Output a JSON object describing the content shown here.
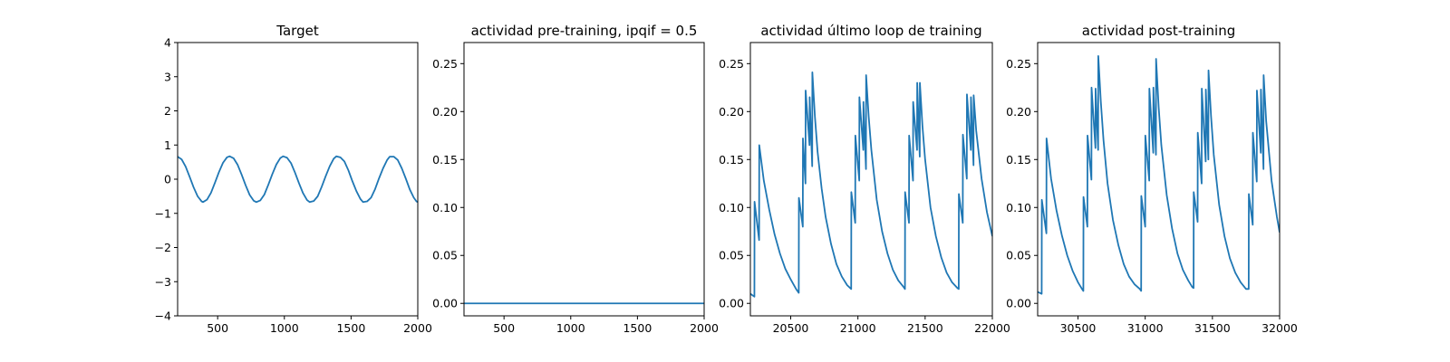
{
  "chart_data": [
    {
      "type": "line",
      "title": "Target",
      "xlim": [
        200,
        2000
      ],
      "ylim": [
        -4,
        4
      ],
      "xticks": [
        500,
        1000,
        1500,
        2000
      ],
      "xtick_labels": [
        "500",
        "1000",
        "1500",
        "2000"
      ],
      "yticks": [
        -4,
        -3,
        -2,
        -1,
        0,
        1,
        2,
        3,
        4
      ],
      "ytick_labels": [
        "−4",
        "−3",
        "−2",
        "−1",
        "0",
        "1",
        "2",
        "3",
        "4"
      ],
      "series": [
        {
          "color": "#1f77b4",
          "x": [
            200,
            230,
            260,
            290,
            320,
            350,
            380,
            390,
            420,
            450,
            480,
            510,
            540,
            570,
            590,
            620,
            650,
            680,
            710,
            740,
            770,
            790,
            820,
            850,
            880,
            910,
            940,
            970,
            990,
            1020,
            1050,
            1080,
            1110,
            1140,
            1170,
            1190,
            1220,
            1250,
            1280,
            1310,
            1340,
            1370,
            1390,
            1420,
            1450,
            1480,
            1510,
            1540,
            1570,
            1590,
            1620,
            1650,
            1680,
            1710,
            1740,
            1770,
            1790,
            1820,
            1850,
            1880,
            1910,
            1940,
            1970,
            1990,
            2000
          ],
          "y": [
            0.66,
            0.58,
            0.37,
            0.07,
            -0.24,
            -0.5,
            -0.65,
            -0.67,
            -0.6,
            -0.4,
            -0.1,
            0.21,
            0.48,
            0.64,
            0.67,
            0.61,
            0.42,
            0.13,
            -0.18,
            -0.46,
            -0.63,
            -0.67,
            -0.62,
            -0.45,
            -0.16,
            0.15,
            0.43,
            0.62,
            0.67,
            0.63,
            0.47,
            0.19,
            -0.12,
            -0.41,
            -0.61,
            -0.67,
            -0.64,
            -0.5,
            -0.22,
            0.09,
            0.38,
            0.6,
            0.67,
            0.64,
            0.52,
            0.26,
            -0.06,
            -0.35,
            -0.58,
            -0.67,
            -0.65,
            -0.54,
            -0.29,
            0.03,
            0.32,
            0.56,
            0.66,
            0.66,
            0.56,
            0.32,
            0.02,
            -0.3,
            -0.54,
            -0.65,
            -0.67
          ]
        }
      ]
    },
    {
      "type": "line",
      "title": "actividad pre-training, ipqif = 0.5",
      "xlim": [
        200,
        2000
      ],
      "ylim": [
        -0.013,
        0.272
      ],
      "xticks": [
        500,
        1000,
        1500,
        2000
      ],
      "xtick_labels": [
        "500",
        "1000",
        "1500",
        "2000"
      ],
      "yticks": [
        0,
        0.05,
        0.1,
        0.15,
        0.2,
        0.25
      ],
      "ytick_labels": [
        "0.00",
        "0.05",
        "0.10",
        "0.15",
        "0.20",
        "0.25"
      ],
      "series": [
        {
          "color": "#1f77b4",
          "x": [
            200,
            2000
          ],
          "y": [
            0,
            0
          ]
        }
      ]
    },
    {
      "type": "line",
      "title": "actividad último loop de training",
      "xlim": [
        20200,
        22000
      ],
      "ylim": [
        -0.013,
        0.272
      ],
      "xticks": [
        20500,
        21000,
        21500,
        22000
      ],
      "xtick_labels": [
        "20500",
        "21000",
        "21500",
        "22000"
      ],
      "yticks": [
        0,
        0.05,
        0.1,
        0.15,
        0.2,
        0.25
      ],
      "ytick_labels": [
        "0.00",
        "0.05",
        "0.10",
        "0.15",
        "0.20",
        "0.25"
      ],
      "series": [
        {
          "color": "#1f77b4",
          "x": [
            20200,
            20230,
            20231,
            20265,
            20266,
            20300,
            20340,
            20380,
            20420,
            20460,
            20500,
            20540,
            20560,
            20561,
            20590,
            20591,
            20610,
            20611,
            20640,
            20641,
            20660,
            20661,
            20680,
            20700,
            20730,
            20760,
            20800,
            20840,
            20880,
            20920,
            20950,
            20951,
            20980,
            20981,
            21010,
            21011,
            21040,
            21041,
            21060,
            21061,
            21080,
            21100,
            21140,
            21180,
            21220,
            21260,
            21300,
            21340,
            21350,
            21351,
            21380,
            21381,
            21410,
            21411,
            21440,
            21441,
            21460,
            21461,
            21480,
            21500,
            21540,
            21580,
            21620,
            21660,
            21700,
            21740,
            21750,
            21751,
            21780,
            21781,
            21810,
            21811,
            21840,
            21841,
            21860,
            21861,
            21880,
            21920,
            21960,
            22000
          ],
          "y": [
            0.01,
            0.007,
            0.106,
            0.066,
            0.165,
            0.128,
            0.098,
            0.072,
            0.052,
            0.036,
            0.025,
            0.015,
            0.011,
            0.11,
            0.08,
            0.172,
            0.125,
            0.222,
            0.165,
            0.215,
            0.143,
            0.241,
            0.195,
            0.158,
            0.12,
            0.09,
            0.062,
            0.041,
            0.028,
            0.019,
            0.015,
            0.116,
            0.084,
            0.175,
            0.128,
            0.215,
            0.16,
            0.21,
            0.14,
            0.238,
            0.195,
            0.16,
            0.108,
            0.075,
            0.052,
            0.035,
            0.024,
            0.017,
            0.015,
            0.116,
            0.084,
            0.175,
            0.128,
            0.21,
            0.16,
            0.23,
            0.153,
            0.23,
            0.185,
            0.15,
            0.1,
            0.07,
            0.048,
            0.032,
            0.022,
            0.016,
            0.015,
            0.114,
            0.084,
            0.176,
            0.13,
            0.218,
            0.16,
            0.215,
            0.144,
            0.217,
            0.18,
            0.13,
            0.095,
            0.07
          ]
        }
      ]
    },
    {
      "type": "line",
      "title": "actividad post-training",
      "xlim": [
        30200,
        32000
      ],
      "ylim": [
        -0.013,
        0.272
      ],
      "xticks": [
        30500,
        31000,
        31500,
        32000
      ],
      "xtick_labels": [
        "30500",
        "31000",
        "31500",
        "32000"
      ],
      "yticks": [
        0,
        0.05,
        0.1,
        0.15,
        0.2,
        0.25
      ],
      "ytick_labels": [
        "0.00",
        "0.05",
        "0.10",
        "0.15",
        "0.20",
        "0.25"
      ],
      "series": [
        {
          "color": "#1f77b4",
          "x": [
            30200,
            30230,
            30231,
            30265,
            30266,
            30300,
            30340,
            30380,
            30420,
            30460,
            30500,
            30530,
            30540,
            30541,
            30570,
            30571,
            30600,
            30601,
            30630,
            30631,
            30650,
            30651,
            30670,
            30690,
            30720,
            30760,
            30800,
            30840,
            30880,
            30920,
            30960,
            30970,
            30971,
            31000,
            31001,
            31030,
            31031,
            31060,
            31061,
            31080,
            31081,
            31100,
            31120,
            31160,
            31200,
            31240,
            31280,
            31320,
            31350,
            31360,
            31361,
            31390,
            31391,
            31420,
            31421,
            31450,
            31451,
            31470,
            31471,
            31490,
            31510,
            31550,
            31590,
            31630,
            31670,
            31710,
            31750,
            31770,
            31771,
            31800,
            31801,
            31830,
            31831,
            31860,
            31861,
            31880,
            31881,
            31900,
            31940,
            31980,
            32000
          ],
          "y": [
            0.012,
            0.01,
            0.108,
            0.073,
            0.172,
            0.13,
            0.097,
            0.071,
            0.05,
            0.034,
            0.022,
            0.015,
            0.013,
            0.111,
            0.08,
            0.175,
            0.129,
            0.225,
            0.162,
            0.224,
            0.16,
            0.258,
            0.21,
            0.17,
            0.125,
            0.087,
            0.061,
            0.041,
            0.028,
            0.02,
            0.015,
            0.013,
            0.112,
            0.08,
            0.175,
            0.128,
            0.224,
            0.157,
            0.225,
            0.155,
            0.255,
            0.205,
            0.165,
            0.113,
            0.078,
            0.052,
            0.035,
            0.024,
            0.017,
            0.016,
            0.116,
            0.085,
            0.178,
            0.125,
            0.224,
            0.148,
            0.223,
            0.15,
            0.243,
            0.195,
            0.155,
            0.103,
            0.07,
            0.047,
            0.032,
            0.022,
            0.015,
            0.015,
            0.114,
            0.082,
            0.178,
            0.127,
            0.222,
            0.157,
            0.223,
            0.14,
            0.238,
            0.19,
            0.128,
            0.09,
            0.074
          ]
        }
      ]
    }
  ]
}
